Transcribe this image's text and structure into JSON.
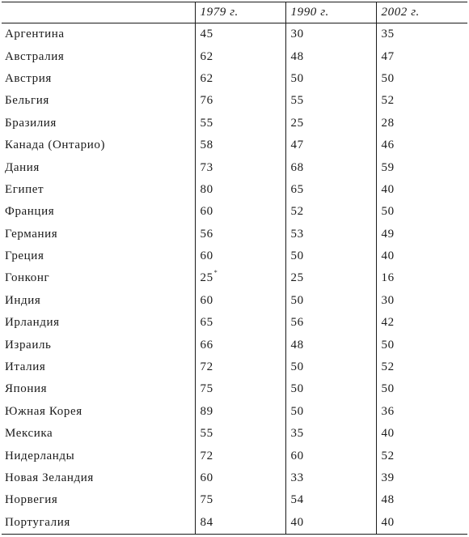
{
  "headers": [
    "",
    "1979 г.",
    "1990 г.",
    "2002 г."
  ],
  "rows": [
    {
      "country": "Аргентина",
      "v1979": "45",
      "v1990": "30",
      "v2002": "35"
    },
    {
      "country": "Австралия",
      "v1979": "62",
      "v1990": "48",
      "v2002": "47"
    },
    {
      "country": "Австрия",
      "v1979": "62",
      "v1990": "50",
      "v2002": "50"
    },
    {
      "country": "Бельгия",
      "v1979": "76",
      "v1990": "55",
      "v2002": "52"
    },
    {
      "country": "Бразилия",
      "v1979": "55",
      "v1990": "25",
      "v2002": "28"
    },
    {
      "country": "Канада (Онтарио)",
      "v1979": "58",
      "v1990": "47",
      "v2002": "46"
    },
    {
      "country": "Дания",
      "v1979": "73",
      "v1990": "68",
      "v2002": "59"
    },
    {
      "country": "Египет",
      "v1979": "80",
      "v1990": "65",
      "v2002": "40"
    },
    {
      "country": "Франция",
      "v1979": "60",
      "v1990": "52",
      "v2002": "50"
    },
    {
      "country": "Германия",
      "v1979": "56",
      "v1990": "53",
      "v2002": "49"
    },
    {
      "country": "Греция",
      "v1979": "60",
      "v1990": "50",
      "v2002": "40"
    },
    {
      "country": "Гонконг",
      "v1979": "25",
      "v1979_note": "*",
      "v1990": "25",
      "v2002": "16"
    },
    {
      "country": "Индия",
      "v1979": "60",
      "v1990": "50",
      "v2002": "30"
    },
    {
      "country": "Ирландия",
      "v1979": "65",
      "v1990": "56",
      "v2002": "42"
    },
    {
      "country": "Израиль",
      "v1979": "66",
      "v1990": "48",
      "v2002": "50"
    },
    {
      "country": "Италия",
      "v1979": "72",
      "v1990": "50",
      "v2002": "52"
    },
    {
      "country": "Япония",
      "v1979": "75",
      "v1990": "50",
      "v2002": "50"
    },
    {
      "country": "Южная Корея",
      "v1979": "89",
      "v1990": "50",
      "v2002": "36"
    },
    {
      "country": "Мексика",
      "v1979": "55",
      "v1990": "35",
      "v2002": "40"
    },
    {
      "country": "Нидерланды",
      "v1979": "72",
      "v1990": "60",
      "v2002": "52"
    },
    {
      "country": "Новая Зеландия",
      "v1979": "60",
      "v1990": "33",
      "v2002": "39"
    },
    {
      "country": "Норвегия",
      "v1979": "75",
      "v1990": "54",
      "v2002": "48"
    },
    {
      "country": "Португалия",
      "v1979": "84",
      "v1990": "40",
      "v2002": "40"
    }
  ]
}
